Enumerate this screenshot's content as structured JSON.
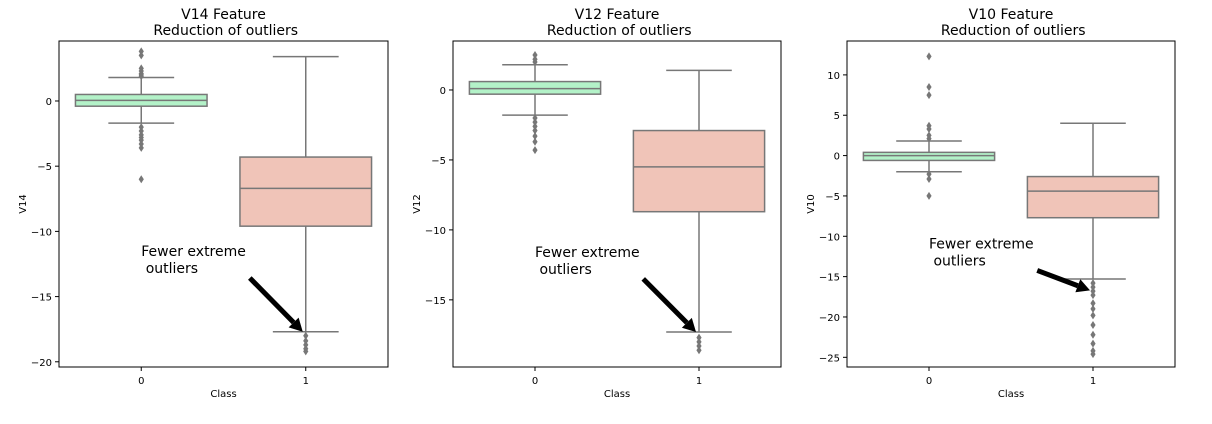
{
  "chart_data": [
    {
      "type": "box",
      "title": "V14 Feature\n Reduction of outliers",
      "xlabel": "Class",
      "ylabel": "V14",
      "categories": [
        "0",
        "1"
      ],
      "ylim": [
        -20.4,
        4.6
      ],
      "yticks": [
        0,
        -5,
        -10,
        -15,
        -20
      ],
      "colors": [
        "#b3f2c8",
        "#f0c4b8"
      ],
      "boxes": [
        {
          "q1": -0.4,
          "median": 0.05,
          "q3": 0.5,
          "whisker_low": -1.7,
          "whisker_high": 1.8,
          "outliers": [
            3.8,
            3.5,
            2.5,
            2.3,
            2.1,
            2.0,
            1.9,
            -2.0,
            -2.3,
            -2.6,
            -2.8,
            -3.0,
            -3.3,
            -3.6,
            -6.0
          ]
        },
        {
          "q1": -9.6,
          "median": -6.7,
          "q3": -4.3,
          "whisker_low": -17.7,
          "whisker_high": 3.4,
          "outliers": [
            -18.0,
            -18.4,
            -18.7,
            -19.0,
            -19.2
          ]
        }
      ],
      "annotation": {
        "text": [
          "Fewer extreme",
          " outliers"
        ],
        "xy": [
          1,
          -17.7
        ],
        "xytext": [
          0,
          -12.5
        ]
      }
    },
    {
      "type": "box",
      "title": "V12 Feature\n Reduction of outliers",
      "xlabel": "Class",
      "ylabel": "V12",
      "categories": [
        "0",
        "1"
      ],
      "ylim": [
        -19.8,
        3.5
      ],
      "yticks": [
        0,
        -5,
        -10,
        -15
      ],
      "colors": [
        "#b3f2c8",
        "#f0c4b8"
      ],
      "boxes": [
        {
          "q1": -0.3,
          "median": 0.1,
          "q3": 0.6,
          "whisker_low": -1.8,
          "whisker_high": 1.8,
          "outliers": [
            2.5,
            2.2,
            2.0,
            -2.0,
            -2.3,
            -2.6,
            -2.9,
            -3.3,
            -3.7,
            -4.3
          ]
        },
        {
          "q1": -8.7,
          "median": -5.5,
          "q3": -2.9,
          "whisker_low": -17.3,
          "whisker_high": 1.4,
          "outliers": [
            -17.7,
            -18.0,
            -18.3,
            -18.6
          ]
        }
      ],
      "annotation": {
        "text": [
          "Fewer extreme",
          " outliers"
        ],
        "xy": [
          1,
          -17.3
        ],
        "xytext": [
          0,
          -12.5
        ]
      }
    },
    {
      "type": "box",
      "title": "V10 Feature\n Reduction of outliers",
      "xlabel": "Class",
      "ylabel": "V10",
      "categories": [
        "0",
        "1"
      ],
      "ylim": [
        -26.2,
        14.2
      ],
      "yticks": [
        10,
        5,
        0,
        -5,
        -10,
        -15,
        -20,
        -25
      ],
      "colors": [
        "#b3f2c8",
        "#f0c4b8"
      ],
      "boxes": [
        {
          "q1": -0.6,
          "median": 0.0,
          "q3": 0.4,
          "whisker_low": -2.0,
          "whisker_high": 1.8,
          "outliers": [
            12.3,
            8.5,
            7.5,
            3.7,
            3.3,
            2.5,
            2.1,
            -2.3,
            -2.9,
            -5.0
          ]
        },
        {
          "q1": -7.7,
          "median": -4.4,
          "q3": -2.6,
          "whisker_low": -15.3,
          "whisker_high": 4.0,
          "outliers": [
            -15.8,
            -16.3,
            -16.8,
            -17.3,
            -18.3,
            -19.0,
            -19.8,
            -21.0,
            -22.2,
            -23.3,
            -24.2,
            -24.6
          ]
        }
      ],
      "annotation": {
        "text": [
          "Fewer extreme",
          " outliers"
        ],
        "xy": [
          1,
          -16.7
        ],
        "xytext": [
          0,
          -12.5
        ]
      }
    }
  ]
}
